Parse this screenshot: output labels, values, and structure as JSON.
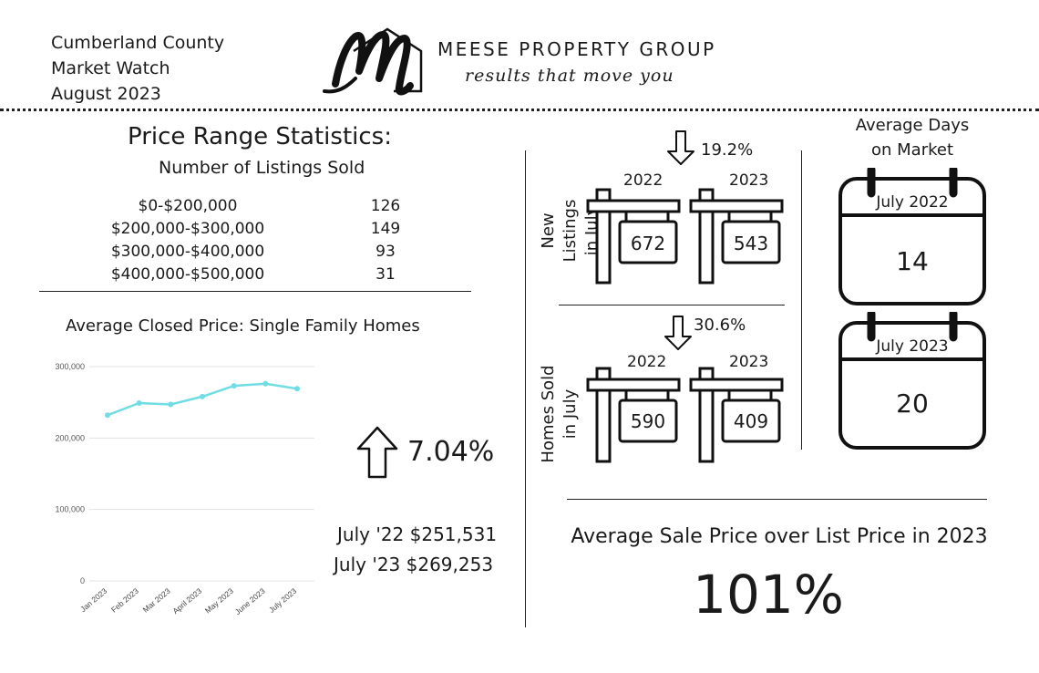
{
  "header": {
    "line1": "Cumberland County",
    "line2": "Market Watch",
    "line3": "August 2023",
    "company": "MEESE PROPERTY GROUP",
    "tagline": "results that move you"
  },
  "price_range": {
    "title": "Price Range Statistics:",
    "subtitle": "Number of Listings Sold",
    "rows": [
      {
        "range": "$0-$200,000",
        "count": "126"
      },
      {
        "range": "$200,000-$300,000",
        "count": "149"
      },
      {
        "range": "$300,000-$400,000",
        "count": "93"
      },
      {
        "range": "$400,000-$500,000",
        "count": "31"
      }
    ]
  },
  "closed_price": {
    "title": "Average Closed Price: Single Family Homes",
    "change": "7.04%",
    "july22": "July '22 $251,531",
    "july23": "July '23 $269,253"
  },
  "chart_data": {
    "type": "line",
    "title": "",
    "categories": [
      "Jan 2023",
      "Feb 2023",
      "Mar 2023",
      "April 2023",
      "May 2023",
      "June 2023",
      "July 2023"
    ],
    "series": [
      {
        "values": [
          232000,
          249000,
          247000,
          258000,
          273000,
          276000,
          269000
        ]
      }
    ],
    "ylim": [
      0,
      300000
    ],
    "yticks": [
      0,
      100000,
      200000,
      300000
    ],
    "ytick_labels": [
      "0",
      "100,000",
      "200,000",
      "300,000"
    ],
    "grid": true,
    "color": "#6fdde3"
  },
  "new_listings": {
    "label_line1": "New Listings",
    "label_line2": "in July",
    "change": "19.2%",
    "year1": "2022",
    "value1": "672",
    "year2": "2023",
    "value2": "543"
  },
  "homes_sold": {
    "label_line1": "Homes Sold",
    "label_line2": "in July",
    "change": "30.6%",
    "year1": "2022",
    "value1": "590",
    "year2": "2023",
    "value2": "409"
  },
  "days_on_market": {
    "title_line1": "Average Days",
    "title_line2": "on Market",
    "cal1_label": "July 2022",
    "cal1_value": "14",
    "cal2_label": "July 2023",
    "cal2_value": "20"
  },
  "sale_over_list": {
    "title": "Average Sale Price over List Price in 2023",
    "value": "101%"
  },
  "colors": {
    "line": "#6fdde3",
    "ink": "#1a1a1a"
  }
}
